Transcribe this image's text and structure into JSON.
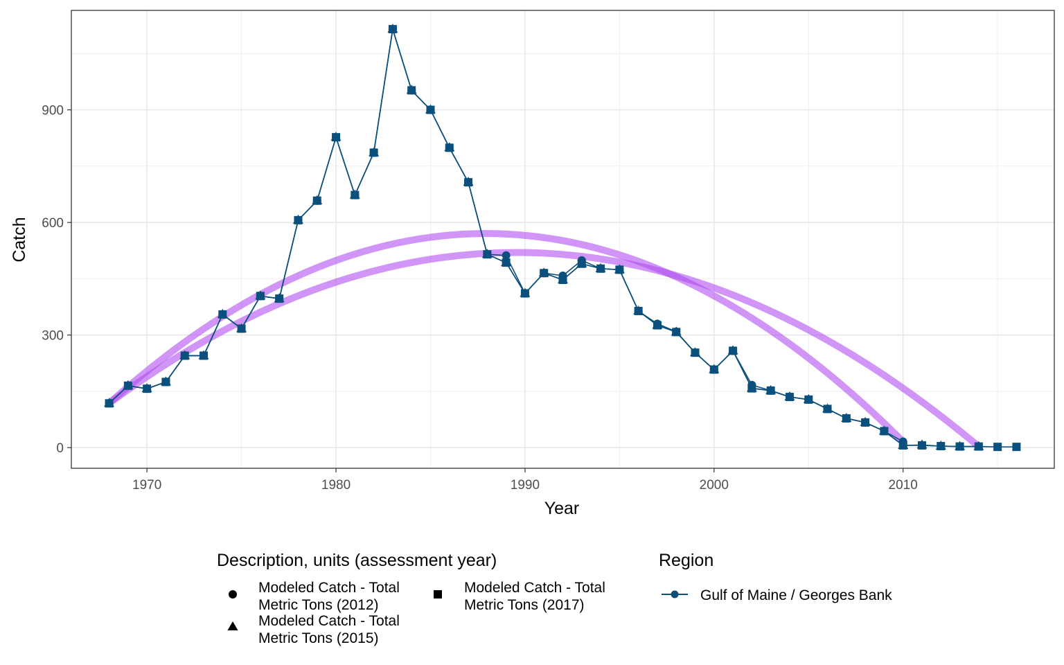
{
  "chart_data": {
    "type": "line",
    "xlabel": "Year",
    "ylabel": "Catch",
    "xlim": [
      1966,
      2018
    ],
    "ylim": [
      -55,
      1165
    ],
    "xticks": [
      1970,
      1980,
      1990,
      2000,
      2010
    ],
    "yticks": [
      0,
      300,
      600,
      900
    ],
    "grid": true,
    "line_color": "#0b4f7c",
    "trend_color": "#b14ff0",
    "legend": {
      "placement": "bottom",
      "shape_title": "Description, units (assessment year)",
      "shape_items": [
        {
          "shape": "circle",
          "label_lines": [
            "Modeled Catch - Total",
            "Metric Tons (2012)"
          ]
        },
        {
          "shape": "triangle",
          "label_lines": [
            "Modeled Catch - Total",
            "Metric Tons (2015)"
          ]
        },
        {
          "shape": "square",
          "label_lines": [
            "Modeled Catch - Total",
            "Metric Tons (2017)"
          ]
        }
      ],
      "region_title": "Region",
      "region_items": [
        {
          "label": "Gulf of Maine / Georges Bank"
        }
      ]
    },
    "series": [
      {
        "name": "Modeled Catch - Total Metric Tons (2012)",
        "shape": "circle",
        "x": [
          1968,
          1969,
          1970,
          1971,
          1972,
          1973,
          1974,
          1975,
          1976,
          1977,
          1978,
          1979,
          1980,
          1981,
          1982,
          1983,
          1984,
          1985,
          1986,
          1987,
          1988,
          1989,
          1990,
          1991,
          1992,
          1993,
          1994,
          1995,
          1996,
          1997,
          1998,
          1999,
          2000,
          2001,
          2002,
          2003,
          2004,
          2005,
          2006,
          2007,
          2008,
          2009,
          2010
        ],
        "y": [
          118,
          165,
          157,
          175,
          245,
          245,
          355,
          317,
          404,
          397,
          606,
          658,
          827,
          673,
          786,
          1115,
          952,
          900,
          799,
          707,
          515,
          512,
          411,
          465,
          458,
          499,
          477,
          474,
          364,
          330,
          309,
          253,
          208,
          258,
          167,
          152,
          135,
          128,
          103,
          78,
          67,
          44,
          16
        ]
      },
      {
        "name": "Modeled Catch - Total Metric Tons (2015)",
        "shape": "triangle",
        "x": [
          1968,
          1969,
          1970,
          1971,
          1972,
          1973,
          1974,
          1975,
          1976,
          1977,
          1978,
          1979,
          1980,
          1981,
          1982,
          1983,
          1984,
          1985,
          1986,
          1987,
          1988,
          1989,
          1990,
          1991,
          1992,
          1993,
          1994,
          1995,
          1996,
          1997,
          1998,
          1999,
          2000,
          2001,
          2002,
          2003,
          2004,
          2005,
          2006,
          2007,
          2008,
          2009,
          2010,
          2011,
          2012,
          2013,
          2014
        ],
        "y": [
          118,
          165,
          157,
          175,
          245,
          245,
          355,
          317,
          404,
          397,
          606,
          658,
          827,
          673,
          786,
          1115,
          952,
          900,
          799,
          707,
          515,
          493,
          411,
          465,
          447,
          490,
          477,
          474,
          364,
          326,
          308,
          253,
          208,
          258,
          158,
          152,
          135,
          128,
          103,
          78,
          67,
          44,
          6,
          7,
          4,
          3,
          3
        ]
      },
      {
        "name": "Modeled Catch - Total Metric Tons (2017)",
        "shape": "square",
        "x": [
          1968,
          1969,
          1970,
          1971,
          1972,
          1973,
          1974,
          1975,
          1976,
          1977,
          1978,
          1979,
          1980,
          1981,
          1982,
          1983,
          1984,
          1985,
          1986,
          1987,
          1988,
          1989,
          1990,
          1991,
          1992,
          1993,
          1994,
          1995,
          1996,
          1997,
          1998,
          1999,
          2000,
          2001,
          2002,
          2003,
          2004,
          2005,
          2006,
          2007,
          2008,
          2009,
          2010,
          2011,
          2012,
          2013,
          2014,
          2015,
          2016
        ],
        "y": [
          118,
          165,
          157,
          175,
          245,
          245,
          355,
          317,
          404,
          397,
          606,
          658,
          827,
          673,
          786,
          1115,
          952,
          900,
          799,
          707,
          515,
          493,
          411,
          465,
          447,
          490,
          477,
          474,
          364,
          326,
          308,
          253,
          208,
          258,
          158,
          152,
          135,
          128,
          103,
          78,
          67,
          44,
          6,
          6,
          4,
          3,
          3,
          2,
          2
        ]
      }
    ],
    "trend_lines": [
      {
        "x_start": 1968,
        "x_end": 2010,
        "y_start": 118,
        "y_end": 16,
        "peak_x": 1988.5,
        "peak_y": 570
      },
      {
        "x_start": 1968,
        "x_end": 2014,
        "y_start": 118,
        "y_end": 3,
        "peak_x": 1989.5,
        "peak_y": 520
      }
    ]
  }
}
